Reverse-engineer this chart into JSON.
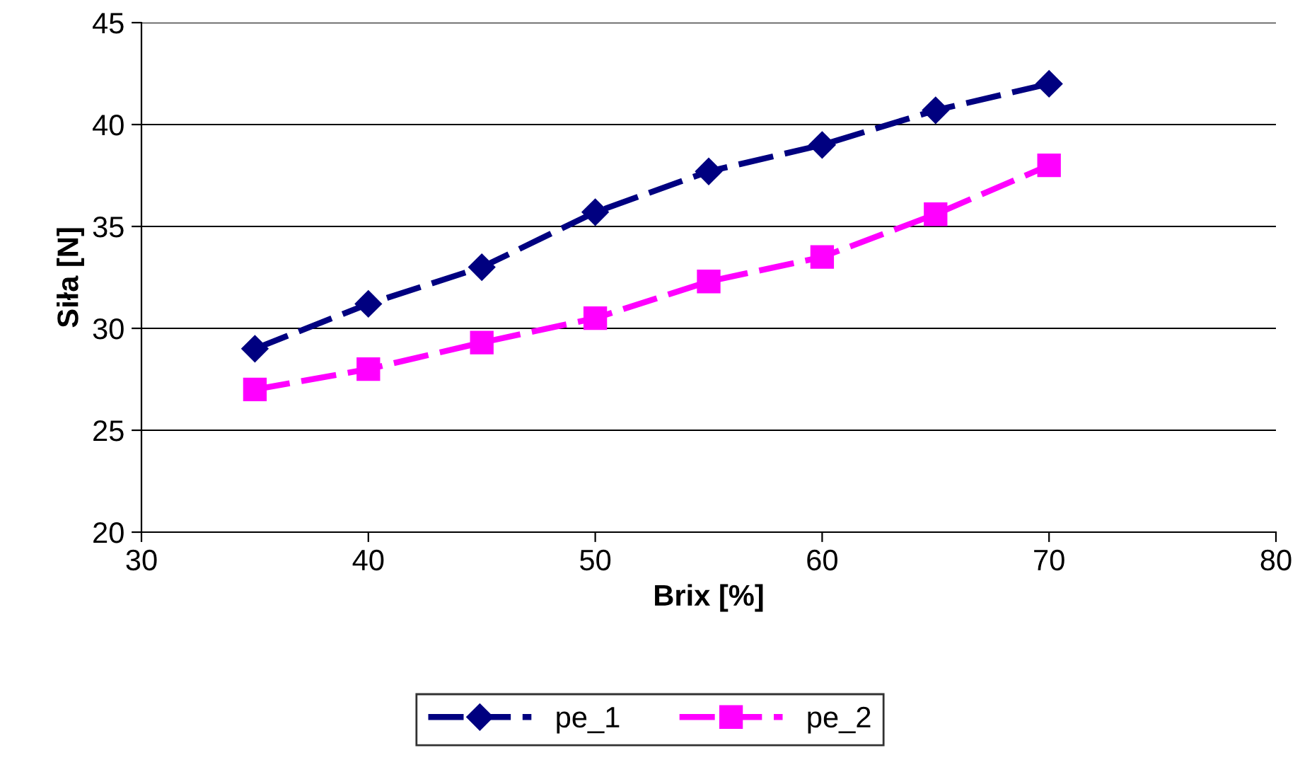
{
  "chart_data": {
    "type": "line",
    "xlabel": "Brix [%]",
    "ylabel": "Siła [N]",
    "x": [
      35,
      40,
      45,
      50,
      55,
      60,
      65,
      70
    ],
    "series": [
      {
        "name": "pe_1",
        "color": "#000080",
        "marker": "diamond",
        "values": [
          29,
          31.2,
          33,
          35.7,
          37.7,
          39,
          40.7,
          42
        ]
      },
      {
        "name": "pe_2",
        "color": "#ff00ff",
        "marker": "square",
        "values": [
          27,
          28,
          29.3,
          30.5,
          32.3,
          33.5,
          35.6,
          38
        ]
      }
    ],
    "xlim": [
      30,
      80
    ],
    "xticks": [
      30,
      40,
      50,
      60,
      70,
      80
    ],
    "ylim": [
      20,
      45
    ],
    "yticks": [
      20,
      25,
      30,
      35,
      40,
      45
    ],
    "grid": "y",
    "legend": "bottom",
    "line_style": "dashed"
  }
}
